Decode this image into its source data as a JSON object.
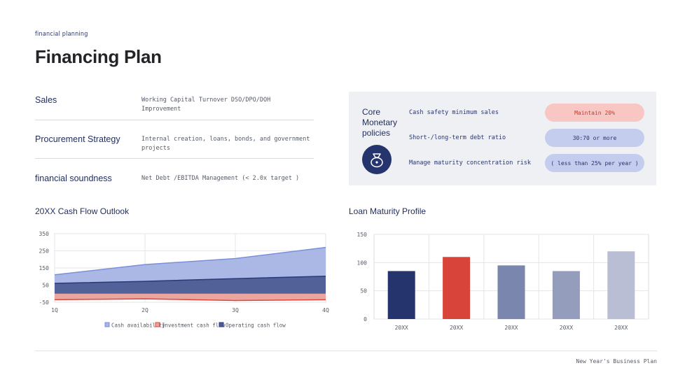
{
  "header": {
    "eyebrow": "financial planning",
    "title": "Financing Plan"
  },
  "rows": [
    {
      "label": "Sales",
      "desc": "Working Capital Turnover DSO/DPO/DOH Improvement"
    },
    {
      "label": "Procurement Strategy",
      "desc": "Internal creation, loans, bonds, and government projects"
    },
    {
      "label": "financial soundness",
      "desc": "Net Debt /EBITDA Management (< 2.0x target )"
    }
  ],
  "panel": {
    "core_lines": [
      "Core",
      "Monetary",
      "policies"
    ],
    "icon": "money-bag-icon",
    "policies": [
      {
        "label": "Cash safety minimum sales",
        "value": "Maintain 20%"
      },
      {
        "label": "Short-/long-term debt ratio",
        "value": "30:70 or more"
      },
      {
        "label": "Manage maturity concentration risk",
        "value": "( less than 25% per year )"
      }
    ]
  },
  "colors": {
    "navy": "#26346e",
    "red": "#d9443a",
    "cash_fill": "#a9b6e6",
    "panel_bg": "#eef0f4"
  },
  "chart_data": [
    {
      "type": "area",
      "title": "20XX Cash Flow Outlook",
      "categories": [
        "1Q",
        "2Q",
        "3Q",
        "4Q"
      ],
      "ylim": [
        -50,
        350
      ],
      "yticks": [
        350,
        250,
        150,
        50,
        -50
      ],
      "grid": true,
      "legend_position": "bottom",
      "series": [
        {
          "name": "Cash availability",
          "values": [
            110,
            170,
            205,
            270
          ],
          "color": "#7b8fd9"
        },
        {
          "name": "Investment cash flow",
          "values": [
            -35,
            -30,
            -40,
            -35
          ],
          "color": "#e0453b"
        },
        {
          "name": "Operating cash flow",
          "values": [
            60,
            72,
            88,
            102
          ],
          "color": "#2a3a78"
        }
      ]
    },
    {
      "type": "bar",
      "title": "Loan Maturity Profile",
      "categories": [
        "20XX",
        "20XX",
        "20XX",
        "20XX",
        "20XX"
      ],
      "values": [
        85,
        110,
        95,
        85,
        120
      ],
      "colors": [
        "#26346e",
        "#d9443a",
        "#7a86ad",
        "#959dbd",
        "#b9bed5"
      ],
      "ylim": [
        0,
        150
      ],
      "yticks": [
        150,
        100,
        50,
        0
      ],
      "grid": true
    }
  ],
  "footer": {
    "text": "New Year's Business Plan"
  }
}
